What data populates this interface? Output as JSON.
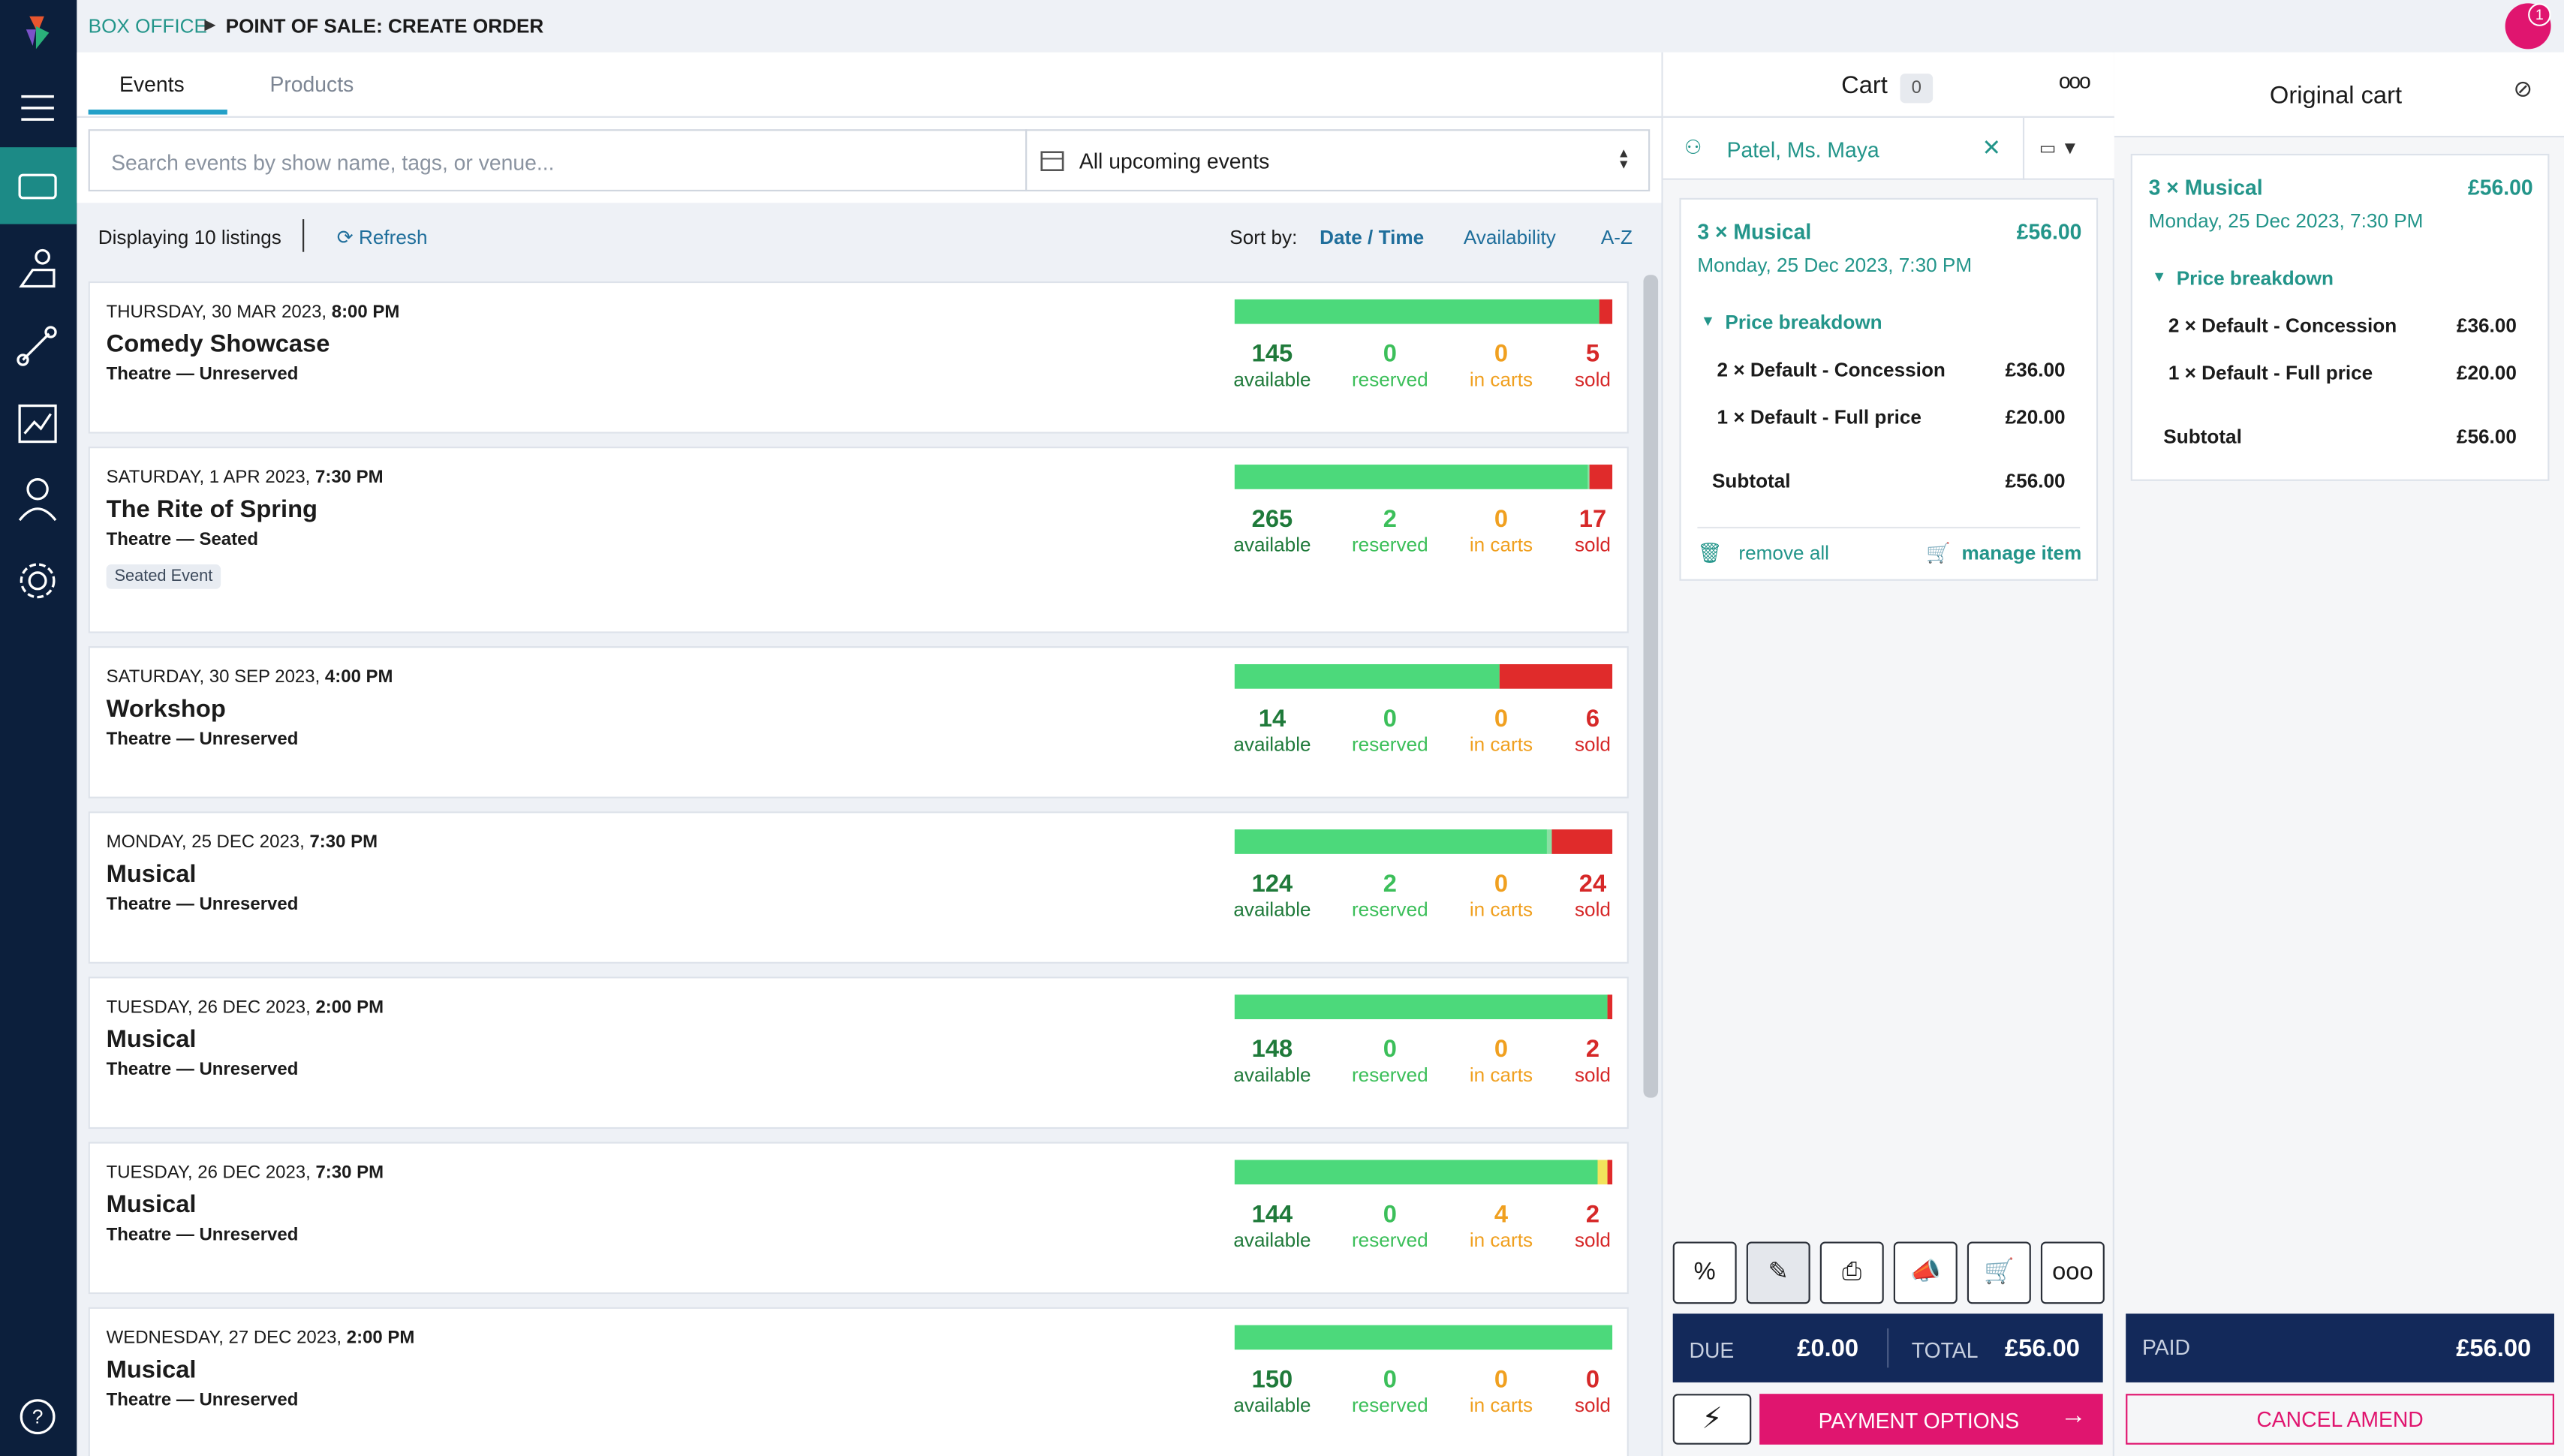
{
  "header": {
    "section": "BOX OFFICE",
    "title": "POINT OF SALE: CREATE ORDER",
    "notifications": "1"
  },
  "tabs": [
    "Events",
    "Products"
  ],
  "search": {
    "placeholder": "Search events by show name, tags, or venue...",
    "filter": "All upcoming events"
  },
  "toolbar": {
    "count": "Displaying 10 listings",
    "refresh": "Refresh",
    "sort_label": "Sort by:",
    "sort_options": [
      "Date / Time",
      "Availability",
      "A-Z"
    ]
  },
  "stat_labels": [
    "available",
    "reserved",
    "in carts",
    "sold"
  ],
  "events": [
    {
      "date": "THURSDAY, 30 MAR 2023,",
      "time": "8:00 PM",
      "name": "Comedy Showcase",
      "venue": "Theatre — Unreserved",
      "stats": [
        145,
        0,
        0,
        5
      ]
    },
    {
      "date": "SATURDAY, 1 APR 2023,",
      "time": "7:30 PM",
      "name": "The Rite of Spring",
      "venue": "Theatre — Seated",
      "tag": "Seated Event",
      "stats": [
        265,
        2,
        0,
        17
      ]
    },
    {
      "date": "SATURDAY, 30 SEP 2023,",
      "time": "4:00 PM",
      "name": "Workshop",
      "venue": "Theatre — Unreserved",
      "stats": [
        14,
        0,
        0,
        6
      ]
    },
    {
      "date": "MONDAY, 25 DEC 2023,",
      "time": "7:30 PM",
      "name": "Musical",
      "venue": "Theatre — Unreserved",
      "stats": [
        124,
        2,
        0,
        24
      ]
    },
    {
      "date": "TUESDAY, 26 DEC 2023,",
      "time": "2:00 PM",
      "name": "Musical",
      "venue": "Theatre — Unreserved",
      "stats": [
        148,
        0,
        0,
        2
      ]
    },
    {
      "date": "TUESDAY, 26 DEC 2023,",
      "time": "7:30 PM",
      "name": "Musical",
      "venue": "Theatre — Unreserved",
      "stats": [
        144,
        0,
        4,
        2
      ]
    },
    {
      "date": "WEDNESDAY, 27 DEC 2023,",
      "time": "2:00 PM",
      "name": "Musical",
      "venue": "Theatre — Unreserved",
      "stats": [
        150,
        0,
        0,
        0
      ]
    }
  ],
  "cart": {
    "title": "Cart",
    "count": "0",
    "customer": "Patel, Ms. Maya",
    "item": {
      "qty_name": "3 × Musical",
      "price": "£56.00",
      "date": "Monday, 25 Dec 2023, 7:30 PM",
      "breakdown_label": "Price breakdown",
      "lines": [
        {
          "label": "2 × Default - Concession",
          "price": "£36.00"
        },
        {
          "label": "1 × Default - Full price",
          "price": "£20.00"
        }
      ],
      "subtotal_label": "Subtotal",
      "subtotal": "£56.00"
    },
    "remove_all": "remove all",
    "manage": "manage item",
    "due_label": "DUE",
    "due": "£0.00",
    "total_label": "TOTAL",
    "total": "£56.00",
    "payment": "PAYMENT OPTIONS"
  },
  "original_cart": {
    "title": "Original cart",
    "item": {
      "qty_name": "3 × Musical",
      "price": "£56.00",
      "date": "Monday, 25 Dec 2023, 7:30 PM",
      "breakdown_label": "Price breakdown",
      "lines": [
        {
          "label": "2 × Default - Concession",
          "price": "£36.00"
        },
        {
          "label": "1 × Default - Full price",
          "price": "£20.00"
        }
      ],
      "subtotal_label": "Subtotal",
      "subtotal": "£56.00"
    },
    "paid_label": "PAID",
    "paid": "£56.00",
    "cancel": "CANCEL AMEND"
  }
}
